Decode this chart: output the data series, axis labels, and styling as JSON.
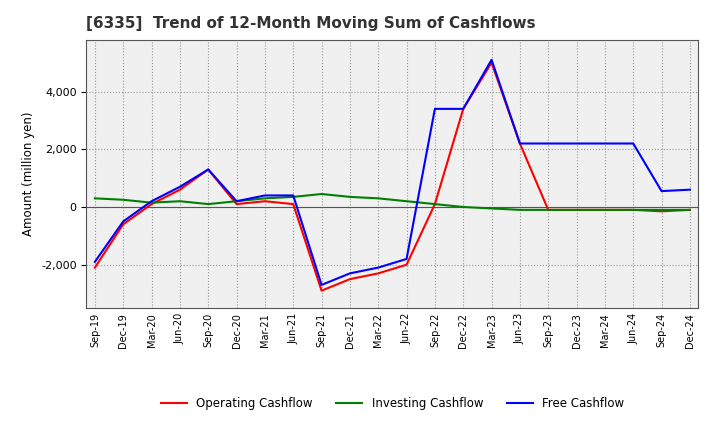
{
  "title": "[6335]  Trend of 12-Month Moving Sum of Cashflows",
  "ylabel": "Amount (million yen)",
  "x_labels": [
    "Sep-19",
    "Dec-19",
    "Mar-20",
    "Jun-20",
    "Sep-20",
    "Dec-20",
    "Mar-21",
    "Jun-21",
    "Sep-21",
    "Dec-21",
    "Mar-22",
    "Jun-22",
    "Sep-22",
    "Dec-22",
    "Mar-23",
    "Jun-23",
    "Sep-23",
    "Dec-23",
    "Mar-24",
    "Jun-24",
    "Sep-24",
    "Dec-24"
  ],
  "operating_cashflow": [
    -2100,
    -600,
    100,
    600,
    1300,
    100,
    200,
    100,
    -2900,
    -2500,
    -2300,
    -2000,
    100,
    3400,
    5000,
    2200,
    -100,
    -100,
    -100,
    -100,
    -150,
    -100
  ],
  "investing_cashflow": [
    300,
    250,
    150,
    200,
    100,
    200,
    300,
    350,
    450,
    350,
    300,
    200,
    100,
    0,
    -50,
    -100,
    -100,
    -100,
    -100,
    -100,
    -100,
    -100
  ],
  "free_cashflow": [
    -1900,
    -500,
    200,
    700,
    1300,
    200,
    400,
    400,
    -2700,
    -2300,
    -2100,
    -1800,
    3400,
    3400,
    5100,
    2200,
    2200,
    2200,
    2200,
    2200,
    550,
    600
  ],
  "operating_color": "#ff0000",
  "investing_color": "#008000",
  "free_color": "#0000ff",
  "ylim": [
    -3500,
    5800
  ],
  "yticks": [
    -2000,
    0,
    2000,
    4000
  ],
  "background_color": "#ffffff",
  "plot_bg_color": "#f0f0f0",
  "grid_color": "#999999"
}
